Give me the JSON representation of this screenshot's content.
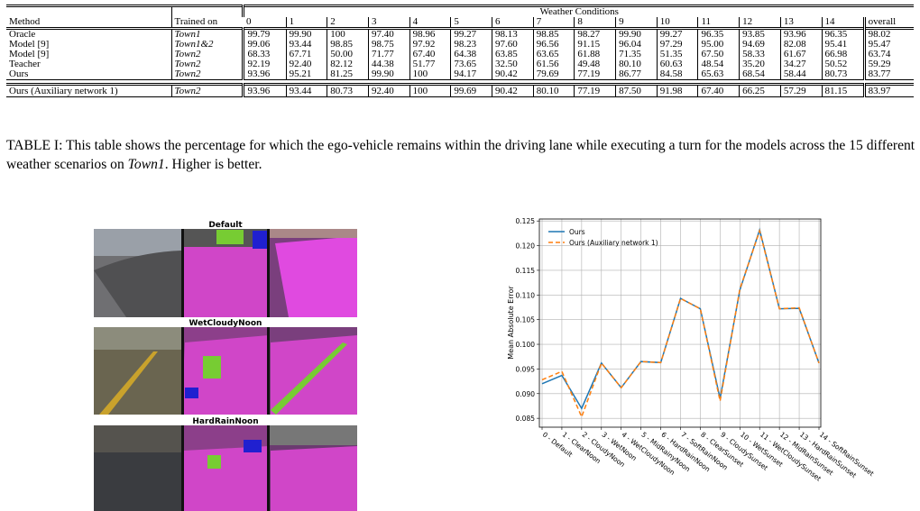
{
  "table": {
    "header": {
      "method": "Method",
      "trained_on": "Trained on",
      "group": "Weather Conditions",
      "columns": [
        "0",
        "1",
        "2",
        "3",
        "4",
        "5",
        "6",
        "7",
        "8",
        "9",
        "10",
        "11",
        "12",
        "13",
        "14",
        "overall"
      ]
    },
    "rows": [
      [
        "Oracle",
        "Town1",
        "99.79",
        "99.90",
        "100",
        "97.40",
        "98.96",
        "99.27",
        "98.13",
        "98.85",
        "98.27",
        "99.90",
        "99.27",
        "96.35",
        "93.85",
        "93.96",
        "96.35",
        "98.02"
      ],
      [
        "Model [9]",
        "Town1&2",
        "99.06",
        "93.44",
        "98.85",
        "98.75",
        "97.92",
        "98.23",
        "97.60",
        "96.56",
        "91.15",
        "96.04",
        "97.29",
        "95.00",
        "94.69",
        "82.08",
        "95.41",
        "95.47"
      ],
      [
        "Model [9]",
        "Town2",
        "68.33",
        "67.71",
        "50.00",
        "71.77",
        "67.40",
        "64.38",
        "63.85",
        "63.65",
        "61.88",
        "71.35",
        "51.35",
        "67.50",
        "58.33",
        "61.67",
        "66.98",
        "63.74"
      ],
      [
        "Teacher",
        "Town2",
        "92.19",
        "92.40",
        "82.12",
        "44.38",
        "51.77",
        "73.65",
        "32.50",
        "61.56",
        "49.48",
        "80.10",
        "60.63",
        "48.54",
        "35.20",
        "34.27",
        "50.52",
        "59.29"
      ],
      [
        "Ours",
        "Town2",
        "93.96",
        "95.21",
        "81.25",
        "99.90",
        "100",
        "94.17",
        "90.42",
        "79.69",
        "77.19",
        "86.77",
        "84.58",
        "65.63",
        "68.54",
        "58.44",
        "80.73",
        "83.77"
      ]
    ],
    "extra_row": [
      "Ours (Auxiliary network 1)",
      "Town2",
      "93.96",
      "93.44",
      "80.73",
      "92.40",
      "100",
      "99.69",
      "90.42",
      "80.10",
      "77.19",
      "87.50",
      "91.98",
      "67.40",
      "66.25",
      "57.29",
      "81.15",
      "83.97"
    ]
  },
  "caption": {
    "before": "TABLE I: This table shows the percentage for which the ego-vehicle remains within the driving lane while executing a turn for the models across the 15 different weather scenarios on ",
    "emph": "Town1",
    "after": ". Higher is better."
  },
  "images": {
    "titles": [
      "Default",
      "WetCloudyNoon",
      "HardRainNoon"
    ]
  },
  "chart_data": {
    "type": "line",
    "y_label": "Mean Absolute Error",
    "categories": [
      "0 - Default",
      "1 - ClearNoon",
      "2 - CloudyNoon",
      "3 - WetNoon",
      "4 - WetCloudyNoon",
      "5 - MidRainyNoon",
      "6 - HardRainNoon",
      "7 - SoftRainNoon",
      "8 - ClearSunset",
      "9 - CloudySunset",
      "10 - WetSunset",
      "11 - WetCloudySunset",
      "12 - MidRainSunset",
      "13 - HardRainSunset",
      "14 - SoftRainSunset"
    ],
    "series": [
      {
        "name": "Ours",
        "color": "#1f77b4",
        "dashed": false,
        "values": [
          0.092,
          0.0937,
          0.087,
          0.0962,
          0.0912,
          0.0965,
          0.0963,
          0.1093,
          0.1072,
          0.089,
          0.111,
          0.1232,
          0.1072,
          0.1073,
          0.0962
        ]
      },
      {
        "name": "Ours (Auxiliary network 1)",
        "color": "#ff7f0e",
        "dashed": true,
        "values": [
          0.0928,
          0.0945,
          0.0853,
          0.0962,
          0.0912,
          0.0965,
          0.0963,
          0.1093,
          0.1072,
          0.0885,
          0.1112,
          0.123,
          0.1072,
          0.1074,
          0.0962
        ]
      }
    ],
    "ylim": [
      0.0832,
      0.1254
    ],
    "yticks": [
      0.085,
      {
        "value": 0.09,
        "label": "0.090"
      },
      0.095,
      {
        "value": 0.1,
        "label": "0.100"
      },
      0.105,
      {
        "value": 0.11,
        "label": "0.110"
      },
      0.115,
      {
        "value": 0.12,
        "label": "0.120"
      },
      0.125
    ],
    "grid": true,
    "legend": "upper left"
  }
}
